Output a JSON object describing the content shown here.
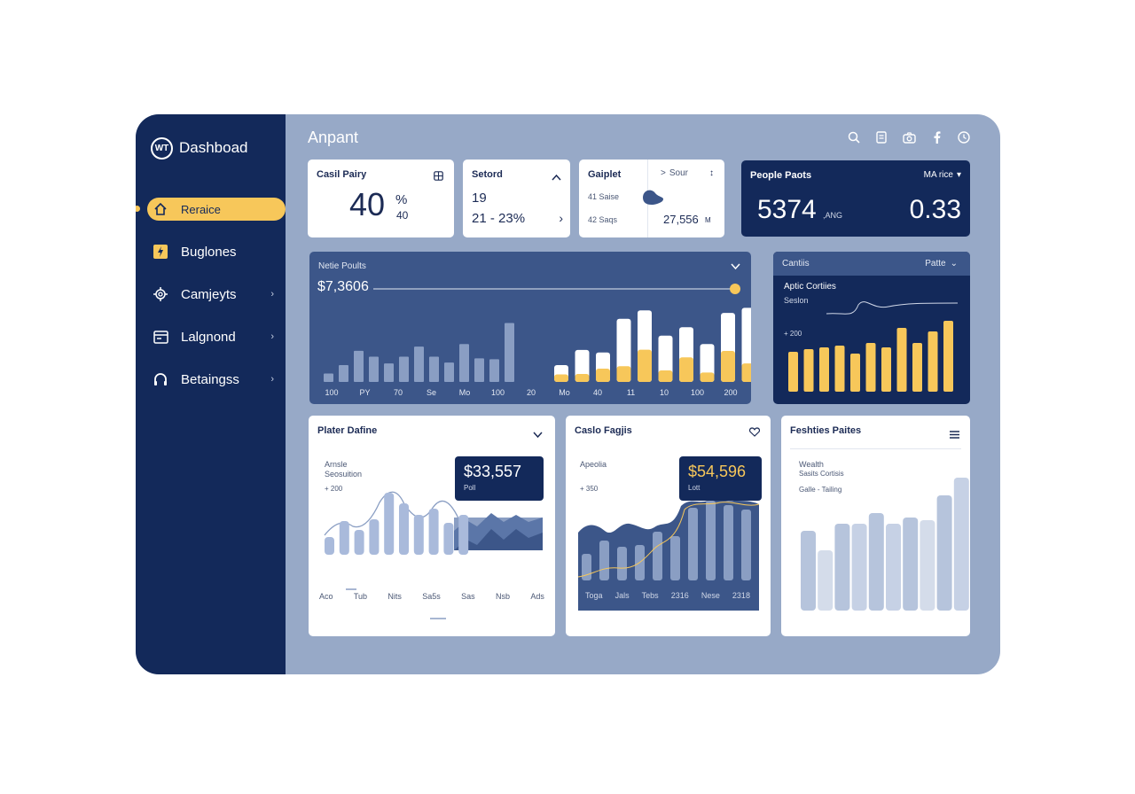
{
  "app": {
    "title": "Dashboad",
    "logo_mark": "WT",
    "page_title": "Anpant"
  },
  "sidebar": {
    "items": [
      {
        "label": "Reraice",
        "icon": "home-icon",
        "active": true
      },
      {
        "label": "Buglones",
        "icon": "bolt-icon"
      },
      {
        "label": "Camjeyts",
        "icon": "gear-icon"
      },
      {
        "label": "Lalgnond",
        "icon": "card-icon"
      },
      {
        "label": "Betaingss",
        "icon": "headset-icon"
      }
    ],
    "chevron": "›"
  },
  "topbar": {
    "icons": [
      "search-icon",
      "clipboard-icon",
      "camera-icon",
      "facebook-icon",
      "clock-icon"
    ]
  },
  "kpi": {
    "card1": {
      "title": "Casil Pairy",
      "value": "40",
      "unit_top": "%",
      "unit_bottom": "40"
    },
    "card2": {
      "title": "Setord",
      "line1": "19",
      "line2": "21 - 23%",
      "chevron": "›"
    },
    "card3": {
      "title": "Gaiplet",
      "row1": "41 Saise",
      "row2": "42 Saqs",
      "side_label": "Sour",
      "value": "27,556",
      "unit": "M"
    },
    "card4": {
      "title": "People Paots",
      "dropdown": "MA rice",
      "value_left": "5374",
      "value_left_suffix": ",ANG",
      "value_right": "0.33"
    }
  },
  "main_chart": {
    "title": "Netie Poults",
    "price": "$7,3606",
    "tick_labels": [
      "100",
      "PY",
      "70",
      "Se",
      "Mo",
      "100",
      "20",
      "Mo",
      "40",
      "11",
      "10",
      "100",
      "200"
    ],
    "chart_data": {
      "type": "bar",
      "series": [
        {
          "values": [
            10,
            20,
            37,
            30,
            22,
            30,
            42,
            30,
            23,
            45,
            28,
            27,
            70
          ]
        },
        {
          "values": [
            20,
            38,
            35,
            75,
            85,
            55,
            65,
            45,
            82,
            88
          ]
        }
      ]
    }
  },
  "side_chart": {
    "title": "Cantiis",
    "dropdown": "Patte",
    "subtitle": "Aptic Cortiies",
    "subtitle2": "Seslon",
    "tick": "+ 200",
    "chart_data": {
      "type": "bar",
      "values": [
        45,
        48,
        50,
        52,
        43,
        55,
        50,
        72,
        55,
        68,
        80
      ]
    }
  },
  "panel1": {
    "title": "Plater Dafine",
    "label1": "Arnsle",
    "label2": "Seosuition",
    "tick": "+ 200",
    "callout_value": "$33,557",
    "callout_label": "Poll",
    "x_labels": [
      "Aco",
      "Tub",
      "Nits",
      "Sa5s",
      "Sas",
      "Nsb",
      "Ads"
    ],
    "chart_data": {
      "type": "bar",
      "values": [
        20,
        38,
        28,
        40,
        70,
        58,
        45,
        52,
        36,
        45
      ]
    }
  },
  "panel2": {
    "title": "Caslo Fagjis",
    "label1": "Apeolia",
    "tick": "+ 350",
    "callout_value": "$54,596",
    "callout_label": "Lott",
    "x_labels": [
      "Toga",
      "Jals",
      "Tebs",
      "2316",
      "Nese",
      "2318"
    ],
    "chart_data": {
      "type": "bar",
      "values": [
        30,
        45,
        38,
        40,
        55,
        50,
        82,
        90,
        85,
        80
      ]
    }
  },
  "panel3": {
    "title": "Feshties Paites",
    "label1": "Wealth",
    "label2": "Sasits Cortisis",
    "label3": "Galle - Tailing",
    "chart_data": {
      "type": "bar",
      "values": [
        90,
        68,
        98,
        98,
        110,
        98,
        105,
        102,
        130,
        150
      ]
    }
  },
  "colors": {
    "navy": "#13295a",
    "yellow": "#f7c75a",
    "frame": "#97a9c7",
    "panel_blue": "#3c5689"
  }
}
